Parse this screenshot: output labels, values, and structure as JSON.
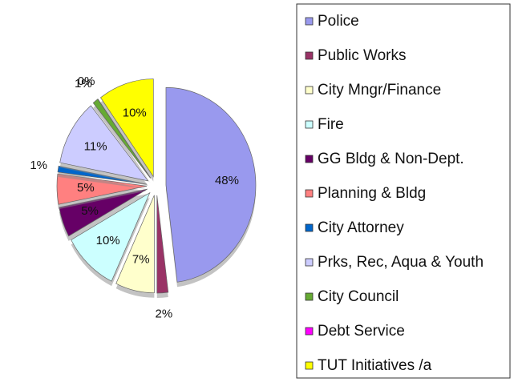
{
  "chart_data": {
    "type": "pie",
    "categories": [
      "Police",
      "Public Works",
      "City Mngr/Finance",
      "Fire",
      "GG Bldg & Non-Dept.",
      "Planning & Bldg",
      "City Attorney",
      "Prks, Rec, Aqua & Youth",
      "City Council",
      "Debt Service",
      "TUT Initiatives /a"
    ],
    "values": [
      48,
      2,
      7,
      10,
      5,
      5,
      1,
      11,
      1,
      0,
      10
    ],
    "value_labels": [
      "48%",
      "2%",
      "7%",
      "10%",
      "5%",
      "5%",
      "1%",
      "11%",
      "1%",
      "0%",
      "10%"
    ],
    "colors": [
      "#9999ee",
      "#993366",
      "#ffffcc",
      "#ccffff",
      "#660066",
      "#ff8080",
      "#0066cc",
      "#ccccff",
      "#66aa33",
      "#ff00ff",
      "#ffff00"
    ],
    "legend": "right"
  }
}
